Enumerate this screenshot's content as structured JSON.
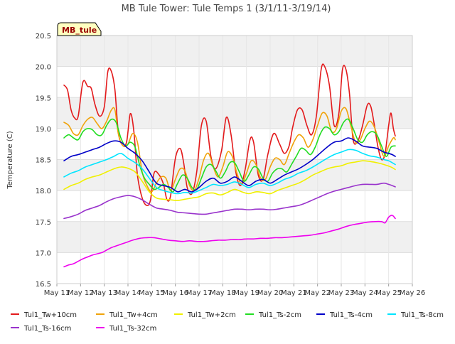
{
  "chart_data": {
    "type": "line",
    "title": "MB Tule Tower: Tule Temps 1 (3/1/11-3/19/14)",
    "xlabel": "",
    "ylabel": "Temperature (C)",
    "station_label": "MB_tule",
    "xlim": [
      11,
      26
    ],
    "ylim": [
      16.5,
      20.5
    ],
    "x_ticks": [
      11,
      12,
      13,
      14,
      15,
      16,
      17,
      18,
      19,
      20,
      21,
      22,
      23,
      24,
      25,
      26
    ],
    "x_tick_labels": [
      "May 11",
      "May 12",
      "May 13",
      "May 14",
      "May 15",
      "May 16",
      "May 17",
      "May 18",
      "May 19",
      "May 20",
      "May 21",
      "May 22",
      "May 23",
      "May 24",
      "May 25",
      "May 26"
    ],
    "y_ticks": [
      16.5,
      17.0,
      17.5,
      18.0,
      18.5,
      19.0,
      19.5,
      20.0,
      20.5
    ],
    "y_tick_labels": [
      "16.5",
      "17.0",
      "17.5",
      "18.0",
      "18.5",
      "19.0",
      "19.5",
      "20.0",
      "20.5"
    ],
    "legend_position": "bottom",
    "series": [
      {
        "name": "Tul1_Tw+10cm",
        "color": "#e31a1c",
        "x": [
          11.3,
          11.45,
          11.6,
          11.75,
          11.9,
          12.1,
          12.3,
          12.45,
          12.6,
          12.8,
          13.0,
          13.15,
          13.3,
          13.45,
          13.6,
          13.8,
          13.95,
          14.1,
          14.25,
          14.4,
          14.6,
          14.8,
          14.95,
          15.1,
          15.3,
          15.5,
          15.65,
          15.8,
          16.0,
          16.2,
          16.35,
          16.5,
          16.7,
          16.9,
          17.1,
          17.3,
          17.5,
          17.7,
          17.95,
          18.15,
          18.35,
          18.55,
          18.75,
          18.95,
          19.15,
          19.3,
          19.5,
          19.7,
          19.9,
          20.15,
          20.4,
          20.6,
          20.8,
          20.95,
          21.15,
          21.35,
          21.55,
          21.75,
          21.95,
          22.15,
          22.3,
          22.5,
          22.7,
          22.9,
          23.05,
          23.2,
          23.35,
          23.5,
          23.7,
          23.9,
          24.1,
          24.25,
          24.4,
          24.55,
          24.7,
          24.85,
          25.0,
          25.1,
          25.2,
          25.28
        ],
        "values": [
          19.7,
          19.62,
          19.3,
          19.17,
          19.2,
          19.75,
          19.68,
          19.65,
          19.4,
          19.2,
          19.35,
          19.92,
          19.92,
          19.62,
          18.92,
          18.72,
          18.8,
          19.24,
          18.95,
          18.25,
          17.88,
          17.76,
          17.85,
          18.28,
          18.26,
          18.1,
          17.85,
          17.92,
          18.52,
          18.68,
          18.45,
          18.05,
          17.95,
          18.3,
          19.05,
          19.12,
          18.55,
          18.35,
          18.65,
          19.18,
          18.9,
          18.3,
          18.08,
          18.35,
          18.82,
          18.78,
          18.25,
          18.18,
          18.58,
          18.92,
          18.75,
          18.6,
          18.72,
          19.02,
          19.3,
          19.3,
          19.05,
          18.9,
          19.2,
          19.95,
          20.0,
          19.7,
          19.05,
          19.25,
          19.95,
          19.95,
          19.55,
          18.82,
          18.8,
          19.05,
          19.38,
          19.35,
          19.05,
          18.7,
          18.5,
          18.6,
          19.05,
          19.25,
          19.0,
          18.88
        ]
      },
      {
        "name": "Tul1_Tw+4cm",
        "color": "#f0a30a",
        "x": [
          11.3,
          11.5,
          11.7,
          11.9,
          12.1,
          12.3,
          12.5,
          12.7,
          12.9,
          13.1,
          13.3,
          13.45,
          13.6,
          13.8,
          14.0,
          14.2,
          14.4,
          14.6,
          14.8,
          15.0,
          15.2,
          15.4,
          15.6,
          15.8,
          16.0,
          16.2,
          16.4,
          16.6,
          16.8,
          17.0,
          17.2,
          17.4,
          17.6,
          17.8,
          18.0,
          18.2,
          18.4,
          18.6,
          18.8,
          19.0,
          19.2,
          19.4,
          19.6,
          19.8,
          20.0,
          20.2,
          20.4,
          20.6,
          20.8,
          21.0,
          21.2,
          21.4,
          21.6,
          21.8,
          22.0,
          22.2,
          22.4,
          22.6,
          22.8,
          23.0,
          23.2,
          23.4,
          23.6,
          23.8,
          24.0,
          24.2,
          24.4,
          24.6,
          24.8,
          25.0,
          25.2,
          25.28
        ],
        "values": [
          19.1,
          19.05,
          18.92,
          18.9,
          19.05,
          19.15,
          19.18,
          19.08,
          19.0,
          19.12,
          19.3,
          19.3,
          18.9,
          18.72,
          18.75,
          18.92,
          18.78,
          18.3,
          18.08,
          17.98,
          18.12,
          18.22,
          18.2,
          18.0,
          18.18,
          18.35,
          18.32,
          18.08,
          18.0,
          18.2,
          18.5,
          18.6,
          18.38,
          18.22,
          18.38,
          18.62,
          18.55,
          18.28,
          18.1,
          18.28,
          18.48,
          18.42,
          18.2,
          18.18,
          18.38,
          18.52,
          18.5,
          18.42,
          18.6,
          18.78,
          18.9,
          18.85,
          18.7,
          18.82,
          19.05,
          19.25,
          19.2,
          18.95,
          19.0,
          19.28,
          19.32,
          19.05,
          18.78,
          18.82,
          19.0,
          19.12,
          19.02,
          18.78,
          18.55,
          18.72,
          18.85,
          18.82
        ]
      },
      {
        "name": "Tul1_Tw+2cm",
        "color": "#f0f000",
        "x": [
          11.3,
          11.6,
          11.9,
          12.2,
          12.5,
          12.8,
          13.1,
          13.4,
          13.7,
          14.0,
          14.3,
          14.6,
          14.9,
          15.2,
          15.5,
          15.8,
          16.1,
          16.4,
          16.7,
          17.0,
          17.3,
          17.6,
          17.9,
          18.2,
          18.5,
          18.8,
          19.1,
          19.4,
          19.7,
          20.0,
          20.3,
          20.6,
          20.9,
          21.2,
          21.5,
          21.8,
          22.1,
          22.4,
          22.7,
          23.0,
          23.3,
          23.6,
          23.9,
          24.2,
          24.5,
          24.8,
          25.1,
          25.28
        ],
        "values": [
          18.02,
          18.08,
          18.12,
          18.18,
          18.22,
          18.25,
          18.3,
          18.35,
          18.38,
          18.36,
          18.3,
          18.15,
          17.98,
          17.88,
          17.86,
          17.85,
          17.84,
          17.86,
          17.88,
          17.9,
          17.95,
          17.96,
          17.93,
          17.97,
          18.02,
          17.98,
          17.95,
          17.98,
          17.97,
          17.95,
          18.0,
          18.04,
          18.08,
          18.12,
          18.18,
          18.25,
          18.3,
          18.35,
          18.38,
          18.4,
          18.44,
          18.46,
          18.48,
          18.47,
          18.45,
          18.42,
          18.38,
          18.34
        ]
      },
      {
        "name": "Tul1_Ts-2cm",
        "color": "#22dd22",
        "x": [
          11.3,
          11.5,
          11.7,
          11.9,
          12.1,
          12.3,
          12.5,
          12.7,
          12.9,
          13.1,
          13.3,
          13.5,
          13.7,
          13.9,
          14.1,
          14.3,
          14.5,
          14.7,
          14.9,
          15.1,
          15.3,
          15.5,
          15.7,
          15.9,
          16.1,
          16.3,
          16.5,
          16.7,
          16.9,
          17.1,
          17.3,
          17.5,
          17.7,
          17.9,
          18.1,
          18.3,
          18.5,
          18.7,
          18.9,
          19.1,
          19.3,
          19.5,
          19.7,
          19.9,
          20.1,
          20.3,
          20.5,
          20.7,
          20.9,
          21.1,
          21.3,
          21.5,
          21.7,
          21.9,
          22.1,
          22.3,
          22.5,
          22.7,
          22.9,
          23.1,
          23.3,
          23.5,
          23.7,
          23.9,
          24.1,
          24.3,
          24.5,
          24.7,
          24.9,
          25.1,
          25.28
        ],
        "values": [
          18.85,
          18.9,
          18.85,
          18.82,
          18.95,
          19.0,
          18.98,
          18.9,
          18.9,
          19.05,
          19.15,
          19.1,
          18.85,
          18.72,
          18.78,
          18.7,
          18.4,
          18.2,
          18.1,
          18.02,
          18.05,
          18.1,
          18.05,
          17.98,
          18.12,
          18.25,
          18.2,
          18.05,
          18.02,
          18.2,
          18.38,
          18.42,
          18.32,
          18.2,
          18.3,
          18.45,
          18.45,
          18.3,
          18.15,
          18.25,
          18.38,
          18.35,
          18.2,
          18.15,
          18.28,
          18.35,
          18.35,
          18.3,
          18.42,
          18.55,
          18.68,
          18.65,
          18.58,
          18.7,
          18.9,
          19.02,
          19.0,
          18.9,
          18.95,
          19.1,
          19.15,
          19.0,
          18.82,
          18.78,
          18.9,
          18.95,
          18.9,
          18.72,
          18.55,
          18.7,
          18.72
        ]
      },
      {
        "name": "Tul1_Ts-4cm",
        "color": "#0000c8",
        "x": [
          11.3,
          11.6,
          11.9,
          12.2,
          12.5,
          12.8,
          13.1,
          13.4,
          13.7,
          14.0,
          14.3,
          14.6,
          14.9,
          15.2,
          15.5,
          15.8,
          16.1,
          16.4,
          16.7,
          17.0,
          17.3,
          17.6,
          17.9,
          18.2,
          18.5,
          18.8,
          19.1,
          19.4,
          19.7,
          20.0,
          20.3,
          20.6,
          20.9,
          21.2,
          21.5,
          21.8,
          22.1,
          22.4,
          22.7,
          23.0,
          23.3,
          23.6,
          23.9,
          24.2,
          24.5,
          24.8,
          25.0,
          25.15,
          25.28
        ],
        "values": [
          18.48,
          18.55,
          18.58,
          18.62,
          18.66,
          18.7,
          18.76,
          18.8,
          18.78,
          18.68,
          18.6,
          18.48,
          18.3,
          18.12,
          18.08,
          18.05,
          17.98,
          18.02,
          17.98,
          18.05,
          18.15,
          18.2,
          18.12,
          18.15,
          18.22,
          18.15,
          18.08,
          18.15,
          18.18,
          18.12,
          18.18,
          18.25,
          18.3,
          18.35,
          18.42,
          18.5,
          18.6,
          18.7,
          18.78,
          18.8,
          18.85,
          18.8,
          18.72,
          18.7,
          18.68,
          18.62,
          18.6,
          18.58,
          18.55
        ]
      },
      {
        "name": "Tul1_Ts-8cm",
        "color": "#00e5ff",
        "x": [
          11.3,
          11.6,
          11.9,
          12.2,
          12.5,
          12.8,
          13.1,
          13.4,
          13.7,
          14.0,
          14.3,
          14.6,
          14.9,
          15.2,
          15.5,
          15.8,
          16.1,
          16.4,
          16.7,
          17.0,
          17.3,
          17.6,
          17.9,
          18.2,
          18.5,
          18.8,
          19.1,
          19.4,
          19.7,
          20.0,
          20.3,
          20.6,
          20.9,
          21.2,
          21.5,
          21.8,
          22.1,
          22.4,
          22.7,
          23.0,
          23.3,
          23.6,
          23.9,
          24.2,
          24.5,
          24.8,
          25.0,
          25.15,
          25.28
        ],
        "values": [
          18.22,
          18.28,
          18.32,
          18.38,
          18.42,
          18.46,
          18.5,
          18.55,
          18.6,
          18.52,
          18.45,
          18.35,
          18.2,
          18.05,
          18.0,
          17.97,
          17.95,
          17.97,
          17.96,
          18.0,
          18.05,
          18.1,
          18.08,
          18.1,
          18.14,
          18.1,
          18.05,
          18.1,
          18.12,
          18.08,
          18.12,
          18.18,
          18.22,
          18.28,
          18.32,
          18.38,
          18.45,
          18.52,
          18.58,
          18.62,
          18.66,
          18.65,
          18.6,
          18.56,
          18.54,
          18.5,
          18.48,
          18.45,
          18.42
        ]
      },
      {
        "name": "Tul1_Ts-16cm",
        "color": "#9933cc",
        "x": [
          11.3,
          11.6,
          11.9,
          12.2,
          12.5,
          12.8,
          13.1,
          13.4,
          13.7,
          14.0,
          14.3,
          14.6,
          14.9,
          15.2,
          15.5,
          15.8,
          16.1,
          16.4,
          16.7,
          17.0,
          17.3,
          17.6,
          17.9,
          18.2,
          18.5,
          18.8,
          19.1,
          19.4,
          19.7,
          20.0,
          20.3,
          20.6,
          20.9,
          21.2,
          21.5,
          21.8,
          22.1,
          22.4,
          22.7,
          23.0,
          23.3,
          23.6,
          23.9,
          24.2,
          24.5,
          24.8,
          25.0,
          25.15,
          25.28
        ],
        "values": [
          17.55,
          17.58,
          17.62,
          17.68,
          17.72,
          17.76,
          17.82,
          17.87,
          17.9,
          17.92,
          17.9,
          17.85,
          17.78,
          17.72,
          17.7,
          17.68,
          17.65,
          17.64,
          17.63,
          17.62,
          17.62,
          17.64,
          17.66,
          17.68,
          17.7,
          17.7,
          17.69,
          17.7,
          17.7,
          17.69,
          17.7,
          17.72,
          17.74,
          17.76,
          17.8,
          17.85,
          17.9,
          17.95,
          17.99,
          18.02,
          18.05,
          18.08,
          18.1,
          18.1,
          18.1,
          18.12,
          18.1,
          18.08,
          18.06
        ]
      },
      {
        "name": "Tul1_Ts-32cm",
        "color": "#ee00ee",
        "x": [
          11.3,
          11.5,
          11.7,
          11.9,
          12.1,
          12.3,
          12.5,
          12.7,
          12.9,
          13.1,
          13.3,
          13.6,
          13.9,
          14.2,
          14.5,
          14.8,
          15.1,
          15.4,
          15.7,
          16.0,
          16.3,
          16.6,
          16.9,
          17.2,
          17.5,
          17.8,
          18.1,
          18.4,
          18.7,
          19.0,
          19.3,
          19.6,
          19.9,
          20.2,
          20.5,
          20.8,
          21.1,
          21.4,
          21.7,
          22.0,
          22.3,
          22.6,
          22.9,
          23.2,
          23.5,
          23.8,
          24.1,
          24.4,
          24.7,
          24.85,
          25.0,
          25.15,
          25.28
        ],
        "values": [
          16.77,
          16.8,
          16.82,
          16.86,
          16.9,
          16.93,
          16.96,
          16.98,
          17.0,
          17.04,
          17.08,
          17.12,
          17.16,
          17.2,
          17.23,
          17.24,
          17.24,
          17.22,
          17.2,
          17.19,
          17.18,
          17.19,
          17.18,
          17.18,
          17.19,
          17.2,
          17.2,
          17.21,
          17.21,
          17.22,
          17.22,
          17.23,
          17.23,
          17.24,
          17.24,
          17.25,
          17.26,
          17.27,
          17.28,
          17.3,
          17.32,
          17.35,
          17.38,
          17.42,
          17.45,
          17.47,
          17.49,
          17.5,
          17.5,
          17.48,
          17.57,
          17.6,
          17.55
        ]
      }
    ]
  }
}
